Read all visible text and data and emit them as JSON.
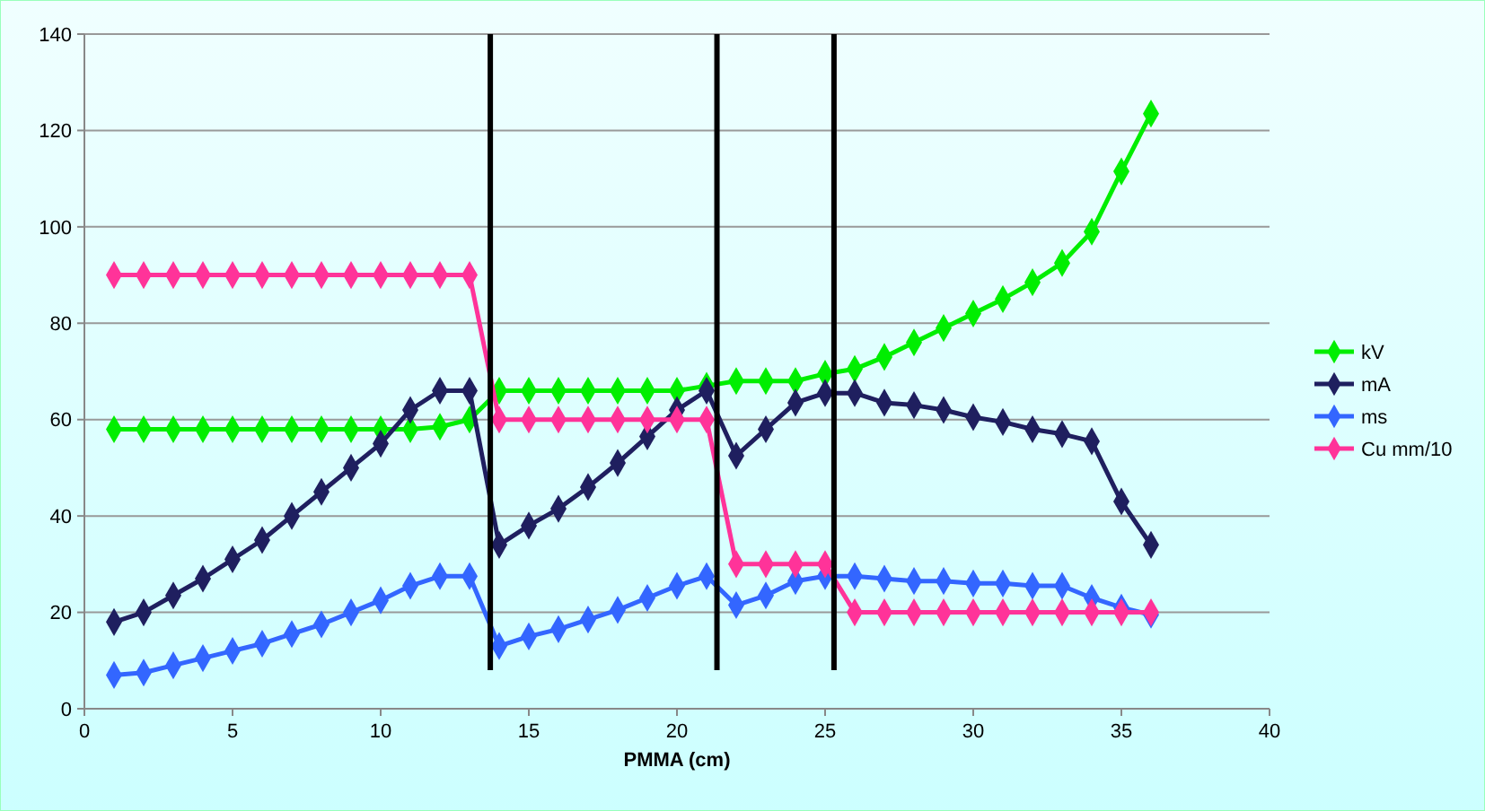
{
  "chart_data": {
    "type": "line",
    "xlabel": "PMMA (cm)",
    "x": [
      1,
      2,
      3,
      4,
      5,
      6,
      7,
      8,
      9,
      10,
      11,
      12,
      13,
      14,
      15,
      16,
      17,
      18,
      19,
      20,
      21,
      22,
      23,
      24,
      25,
      26,
      27,
      28,
      29,
      30,
      31,
      32,
      33,
      34,
      35,
      36
    ],
    "series": [
      {
        "name": "kV",
        "color": "#00ee00",
        "values": [
          58,
          58,
          58,
          58,
          58,
          58,
          58,
          58,
          58,
          58,
          58,
          58.5,
          60,
          66,
          66,
          66,
          66,
          66,
          66,
          66,
          67,
          68,
          68,
          68,
          69.5,
          70.5,
          73,
          76,
          79,
          82,
          85,
          88.5,
          92.5,
          99,
          111.5,
          123.5
        ]
      },
      {
        "name": "mA",
        "color": "#1f1f5f",
        "values": [
          18,
          20,
          23.5,
          27,
          31,
          35,
          40,
          45,
          50,
          55,
          62,
          66,
          66,
          34,
          38,
          41.5,
          46,
          51,
          56.5,
          62,
          66,
          52.5,
          58,
          63.5,
          65.5,
          65.5,
          63.5,
          63,
          62,
          60.5,
          59.5,
          58,
          57,
          55.5,
          43,
          34
        ]
      },
      {
        "name": "ms",
        "color": "#3366ff",
        "values": [
          7,
          7.5,
          9,
          10.5,
          12,
          13.5,
          15.5,
          17.5,
          20,
          22.5,
          25.5,
          27.5,
          27.5,
          13,
          15,
          16.5,
          18.5,
          20.5,
          23,
          25.5,
          27.5,
          21.5,
          23.5,
          26.5,
          27.5,
          27.5,
          27,
          26.5,
          26.5,
          26,
          26,
          25.5,
          25.5,
          23,
          21,
          19.5
        ]
      },
      {
        "name": "Cu mm/10",
        "color": "#ff3399",
        "values": [
          90,
          90,
          90,
          90,
          90,
          90,
          90,
          90,
          90,
          90,
          90,
          90,
          90,
          60,
          60,
          60,
          60,
          60,
          60,
          60,
          60,
          30,
          30,
          30,
          30,
          20,
          20,
          20,
          20,
          20,
          20,
          20,
          20,
          20,
          20,
          20
        ]
      }
    ],
    "xlim": [
      0,
      40
    ],
    "xticks": [
      0,
      5,
      10,
      15,
      20,
      25,
      30,
      35,
      40
    ],
    "ylim": [
      0,
      140
    ],
    "yticks": [
      0,
      20,
      40,
      60,
      80,
      100,
      120,
      140
    ],
    "ref_lines": [
      {
        "axis": "x",
        "value": 13.7,
        "color": "#000000"
      },
      {
        "axis": "x",
        "value": 21.35,
        "color": "#000000"
      },
      {
        "axis": "x",
        "value": 25.3,
        "color": "#000000"
      }
    ],
    "grid": "y",
    "legend": "right",
    "marker": "diamond",
    "line_style": "solid"
  }
}
